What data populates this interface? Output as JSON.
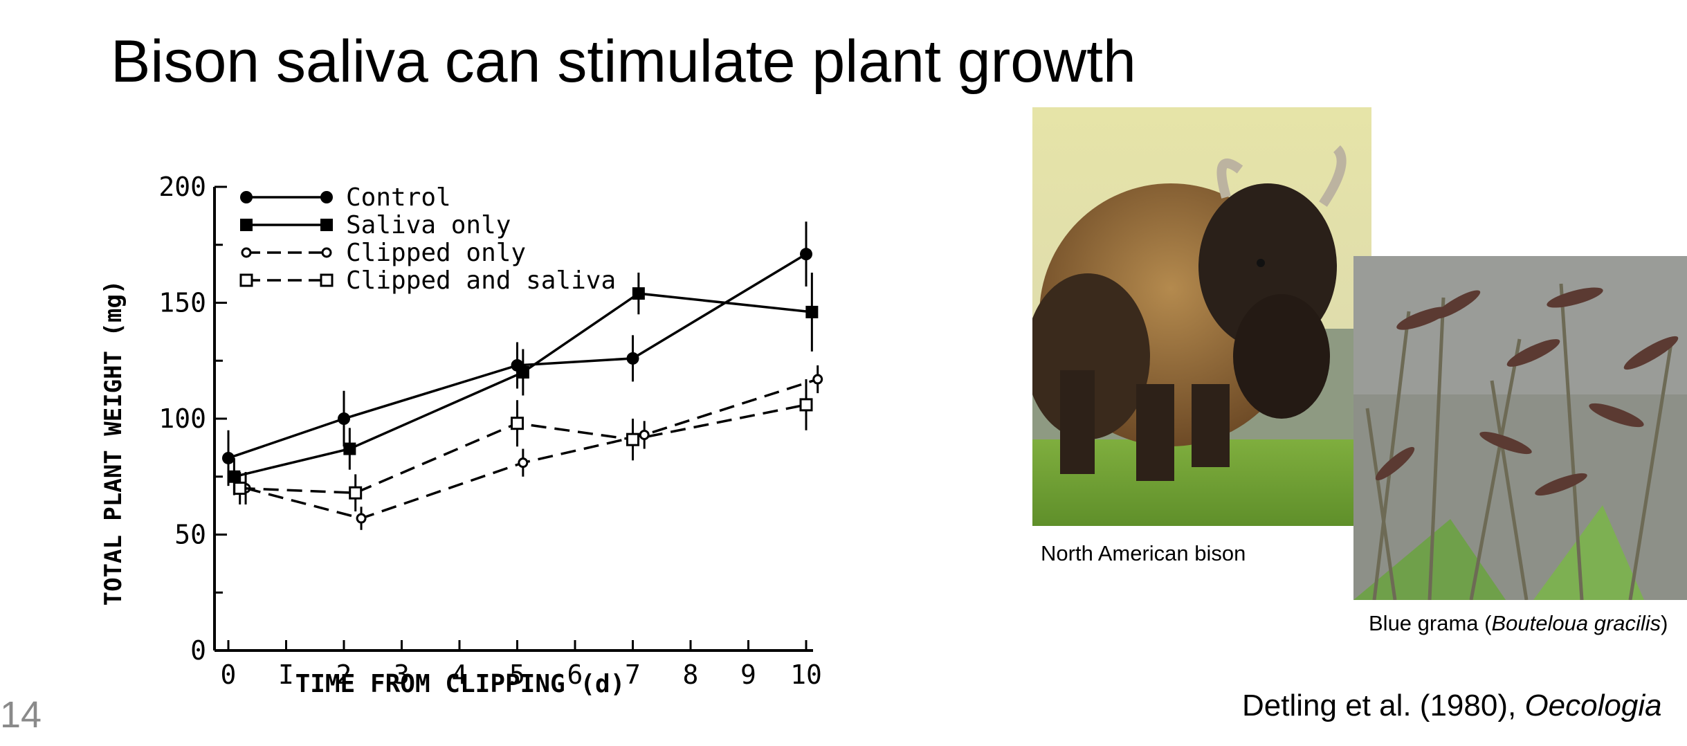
{
  "slide": {
    "title": "Bison saliva can stimulate plant growth",
    "page_number": "14",
    "citation_text": "Detling et al. (1980), ",
    "citation_journal": "Oecologia"
  },
  "figures": {
    "bison_caption": "North American bison",
    "grass_caption_prefix": "Blue grama (",
    "grass_caption_species": "Bouteloua gracilis",
    "grass_caption_suffix": ")"
  },
  "chart_data": {
    "type": "line",
    "title": "",
    "xlabel": "TIME FROM CLIPPING (d)",
    "ylabel": "TOTAL PLANT WEIGHT (mg)",
    "xlim": [
      0,
      10
    ],
    "ylim": [
      0,
      200
    ],
    "x_ticks": [
      "0",
      "I",
      "2",
      "3",
      "4",
      "5",
      "6",
      "7",
      "8",
      "9",
      "10"
    ],
    "y_ticks": [
      "0",
      "50",
      "100",
      "150",
      "200"
    ],
    "legend_position": "top-left",
    "grid": false,
    "series": [
      {
        "name": "Control",
        "marker": "filled-circle",
        "line": "solid",
        "x": [
          0,
          2,
          5,
          7,
          10
        ],
        "y": [
          83,
          100,
          123,
          126,
          171
        ],
        "err": [
          12,
          12,
          10,
          10,
          14
        ]
      },
      {
        "name": "Saliva only",
        "marker": "filled-square",
        "line": "solid",
        "x": [
          0.1,
          2.1,
          5.1,
          7.1,
          10.1
        ],
        "y": [
          75,
          87,
          120,
          154,
          146
        ],
        "err": [
          8,
          9,
          10,
          9,
          17
        ]
      },
      {
        "name": "Clipped only",
        "marker": "open-circle",
        "line": "dashed",
        "x": [
          0.3,
          2.3,
          5.1,
          7.2,
          10.2
        ],
        "y": [
          70,
          57,
          81,
          93,
          117
        ],
        "err": [
          7,
          5,
          6,
          6,
          6
        ]
      },
      {
        "name": "Clipped and saliva",
        "marker": "open-square",
        "line": "dashed",
        "x": [
          0.2,
          2.2,
          5,
          7,
          10
        ],
        "y": [
          70,
          68,
          98,
          91,
          106
        ],
        "err": [
          7,
          8,
          10,
          9,
          11
        ]
      }
    ]
  }
}
